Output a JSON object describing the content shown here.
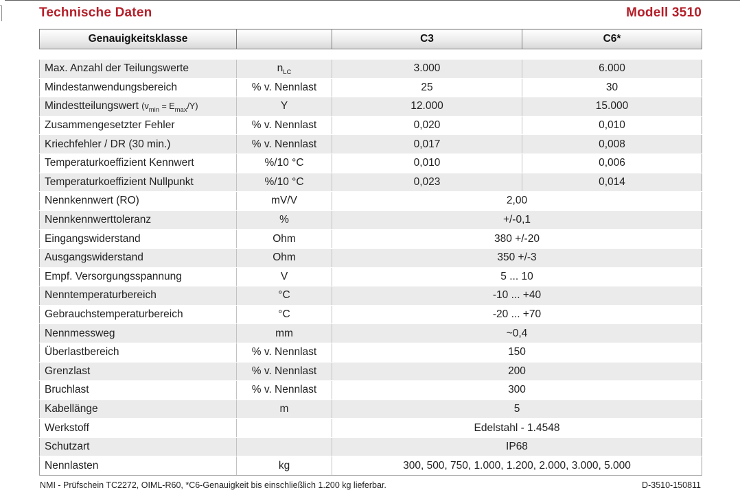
{
  "header": {
    "title": "Technische Daten",
    "model": "Modell 3510"
  },
  "table": {
    "columns": {
      "col1": "Genauigkeitsklasse",
      "col2": "",
      "col3": "C3",
      "col4": "C6*"
    },
    "rows": [
      {
        "label": [
          {
            "t": "Max. Anzahl der Teilungswerte"
          }
        ],
        "unit": [
          {
            "t": "n"
          },
          {
            "s": "LC"
          }
        ],
        "c3": "3.000",
        "c6": "6.000"
      },
      {
        "label": [
          {
            "t": "Mindestanwendungsbereich"
          }
        ],
        "unit": [
          {
            "t": "% v. Nennlast"
          }
        ],
        "c3": "25",
        "c6": "30"
      },
      {
        "label": [
          {
            "t": "Mindestteilungswert "
          },
          {
            "t": "(v",
            "sm": true
          },
          {
            "s": "min"
          },
          {
            "t": " = E",
            "sm": true
          },
          {
            "s": "max"
          },
          {
            "t": "/Y)",
            "sm": true
          }
        ],
        "unit": [
          {
            "t": "Y"
          }
        ],
        "c3": "12.000",
        "c6": "15.000"
      },
      {
        "label": [
          {
            "t": "Zusammengesetzter Fehler"
          }
        ],
        "unit": [
          {
            "t": "% v. Nennlast"
          }
        ],
        "c3": "0,020",
        "c6": "0,010"
      },
      {
        "label": [
          {
            "t": "Kriechfehler / DR (30 min.)"
          }
        ],
        "unit": [
          {
            "t": "% v. Nennlast"
          }
        ],
        "c3": "0,017",
        "c6": "0,008"
      },
      {
        "label": [
          {
            "t": "Temperaturkoeffizient Kennwert"
          }
        ],
        "unit": [
          {
            "t": "%/10 °C"
          }
        ],
        "c3": "0,010",
        "c6": "0,006"
      },
      {
        "label": [
          {
            "t": "Temperaturkoeffizient Nullpunkt"
          }
        ],
        "unit": [
          {
            "t": "%/10 °C"
          }
        ],
        "c3": "0,023",
        "c6": "0,014"
      },
      {
        "label": [
          {
            "t": "Nennkennwert (RO)"
          }
        ],
        "unit": [
          {
            "t": "mV/V"
          }
        ],
        "value": "2,00"
      },
      {
        "label": [
          {
            "t": "Nennkennwerttoleranz"
          }
        ],
        "unit": [
          {
            "t": "%"
          }
        ],
        "value": "+/-0,1"
      },
      {
        "label": [
          {
            "t": "Eingangswiderstand"
          }
        ],
        "unit": [
          {
            "t": "Ohm"
          }
        ],
        "value": "380 +/-20"
      },
      {
        "label": [
          {
            "t": "Ausgangswiderstand"
          }
        ],
        "unit": [
          {
            "t": "Ohm"
          }
        ],
        "value": "350 +/-3"
      },
      {
        "label": [
          {
            "t": "Empf. Versorgungsspannung"
          }
        ],
        "unit": [
          {
            "t": "V"
          }
        ],
        "value": "5 ... 10"
      },
      {
        "label": [
          {
            "t": "Nenntemperaturbereich"
          }
        ],
        "unit": [
          {
            "t": "°C"
          }
        ],
        "value": "-10 ... +40"
      },
      {
        "label": [
          {
            "t": "Gebrauchstemperaturbereich"
          }
        ],
        "unit": [
          {
            "t": "°C"
          }
        ],
        "value": "-20 ... +70"
      },
      {
        "label": [
          {
            "t": "Nennmessweg"
          }
        ],
        "unit": [
          {
            "t": "mm"
          }
        ],
        "value": "~0,4"
      },
      {
        "label": [
          {
            "t": "Überlastbereich"
          }
        ],
        "unit": [
          {
            "t": "% v. Nennlast"
          }
        ],
        "value": "150"
      },
      {
        "label": [
          {
            "t": "Grenzlast"
          }
        ],
        "unit": [
          {
            "t": "% v. Nennlast"
          }
        ],
        "value": "200"
      },
      {
        "label": [
          {
            "t": "Bruchlast"
          }
        ],
        "unit": [
          {
            "t": "% v. Nennlast"
          }
        ],
        "value": "300"
      },
      {
        "label": [
          {
            "t": "Kabellänge"
          }
        ],
        "unit": [
          {
            "t": "m"
          }
        ],
        "value": "5"
      },
      {
        "label": [
          {
            "t": "Werkstoff"
          }
        ],
        "unit": [],
        "value": "Edelstahl - 1.4548"
      },
      {
        "label": [
          {
            "t": "Schutzart"
          }
        ],
        "unit": [],
        "value": "IP68"
      },
      {
        "label": [
          {
            "t": "Nennlasten"
          }
        ],
        "unit": [
          {
            "t": "kg"
          }
        ],
        "value": "300, 500, 750, 1.000, 1.200, 2.000, 3.000, 5.000"
      }
    ]
  },
  "footer": {
    "note": "NMI - Prüfschein TC2272, OIML-R60, *C6-Genauigkeit bis einschließlich 1.200 kg lieferbar.",
    "doc_number": "D-3510-150811"
  },
  "colors": {
    "accent_red": "#b41f29",
    "row_shade": "#ebebeb",
    "header_border": "#7c7c7c"
  }
}
